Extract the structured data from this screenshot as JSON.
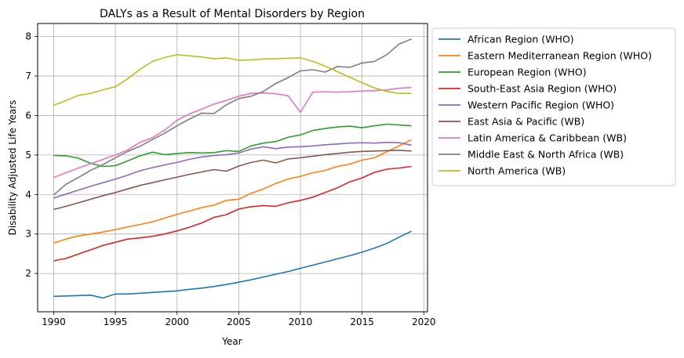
{
  "chart_data": {
    "type": "line",
    "title": "DALYs as a Result of Mental Disorders by Region",
    "xlabel": "Year",
    "ylabel": "Disability Adjusted Life Years",
    "xlim": [
      1988.7,
      2020.3
    ],
    "ylim": [
      1.03,
      8.33
    ],
    "xticks": [
      1990,
      1995,
      2000,
      2005,
      2010,
      2015,
      2020
    ],
    "yticks": [
      2,
      3,
      4,
      5,
      6,
      7,
      8
    ],
    "grid": true,
    "legend_position": "outside-right-top",
    "x": [
      1990,
      1991,
      1992,
      1993,
      1994,
      1995,
      1996,
      1997,
      1998,
      1999,
      2000,
      2001,
      2002,
      2003,
      2004,
      2005,
      2006,
      2007,
      2008,
      2009,
      2010,
      2011,
      2012,
      2013,
      2014,
      2015,
      2016,
      2017,
      2018,
      2019
    ],
    "series": [
      {
        "name": "African Region (WHO)",
        "color": "#1f77b4",
        "values": [
          1.42,
          1.43,
          1.44,
          1.45,
          1.38,
          1.48,
          1.48,
          1.5,
          1.52,
          1.54,
          1.56,
          1.6,
          1.63,
          1.67,
          1.72,
          1.78,
          1.84,
          1.91,
          1.98,
          2.05,
          2.13,
          2.21,
          2.29,
          2.37,
          2.45,
          2.54,
          2.64,
          2.76,
          2.92,
          3.07
        ]
      },
      {
        "name": "Eastern Mediterranean Region (WHO)",
        "color": "#ff7f0e",
        "values": [
          2.77,
          2.87,
          2.95,
          3.0,
          3.05,
          3.11,
          3.18,
          3.24,
          3.31,
          3.4,
          3.5,
          3.58,
          3.67,
          3.73,
          3.85,
          3.88,
          4.03,
          4.14,
          4.28,
          4.39,
          4.46,
          4.55,
          4.61,
          4.71,
          4.77,
          4.87,
          4.93,
          5.08,
          5.23,
          5.39
        ]
      },
      {
        "name": "European Region (WHO)",
        "color": "#2ca02c",
        "values": [
          4.99,
          4.98,
          4.92,
          4.79,
          4.71,
          4.73,
          4.85,
          4.98,
          5.07,
          5.01,
          5.04,
          5.06,
          5.05,
          5.06,
          5.11,
          5.09,
          5.23,
          5.3,
          5.34,
          5.45,
          5.51,
          5.62,
          5.67,
          5.71,
          5.73,
          5.69,
          5.74,
          5.78,
          5.76,
          5.74
        ]
      },
      {
        "name": "South-East Asia Region (WHO)",
        "color": "#d62728",
        "values": [
          2.32,
          2.38,
          2.49,
          2.6,
          2.71,
          2.79,
          2.87,
          2.9,
          2.94,
          3.0,
          3.08,
          3.17,
          3.28,
          3.42,
          3.49,
          3.63,
          3.69,
          3.72,
          3.7,
          3.79,
          3.85,
          3.93,
          4.05,
          4.17,
          4.32,
          4.42,
          4.56,
          4.64,
          4.67,
          4.71
        ]
      },
      {
        "name": "Western Pacific Region (WHO)",
        "color": "#9467bd",
        "values": [
          3.91,
          4.01,
          4.11,
          4.21,
          4.3,
          4.39,
          4.49,
          4.6,
          4.68,
          4.75,
          4.81,
          4.89,
          4.95,
          4.99,
          5.01,
          5.05,
          5.15,
          5.21,
          5.16,
          5.2,
          5.21,
          5.23,
          5.26,
          5.28,
          5.3,
          5.31,
          5.3,
          5.32,
          5.31,
          5.25
        ]
      },
      {
        "name": "East Asia & Pacific (WB)",
        "color": "#8c564b",
        "values": [
          3.62,
          3.7,
          3.79,
          3.88,
          3.97,
          4.05,
          4.14,
          4.23,
          4.3,
          4.37,
          4.44,
          4.51,
          4.57,
          4.63,
          4.59,
          4.72,
          4.81,
          4.87,
          4.8,
          4.9,
          4.93,
          4.97,
          5.01,
          5.04,
          5.07,
          5.09,
          5.1,
          5.11,
          5.12,
          5.1
        ]
      },
      {
        "name": "Latin America & Caribbean (WB)",
        "color": "#e377c2",
        "values": [
          4.43,
          4.55,
          4.67,
          4.78,
          4.89,
          5.0,
          5.13,
          5.32,
          5.44,
          5.63,
          5.88,
          6.04,
          6.16,
          6.29,
          6.38,
          6.49,
          6.56,
          6.57,
          6.55,
          6.5,
          6.08,
          6.59,
          6.6,
          6.59,
          6.6,
          6.62,
          6.63,
          6.65,
          6.69,
          6.71
        ]
      },
      {
        "name": "Middle East & North Africa (WB)",
        "color": "#7f7f7f",
        "values": [
          3.99,
          4.26,
          4.43,
          4.61,
          4.76,
          4.93,
          5.09,
          5.22,
          5.39,
          5.55,
          5.74,
          5.91,
          6.06,
          6.05,
          6.27,
          6.43,
          6.49,
          6.61,
          6.81,
          6.96,
          7.13,
          7.16,
          7.1,
          7.24,
          7.22,
          7.33,
          7.37,
          7.54,
          7.81,
          7.94
        ]
      },
      {
        "name": "North America (WB)",
        "color": "#bcbd22",
        "values": [
          6.26,
          6.38,
          6.51,
          6.56,
          6.65,
          6.73,
          6.93,
          7.17,
          7.37,
          7.47,
          7.54,
          7.51,
          7.48,
          7.44,
          7.46,
          7.4,
          7.41,
          7.43,
          7.44,
          7.45,
          7.46,
          7.37,
          7.25,
          7.11,
          6.97,
          6.83,
          6.7,
          6.61,
          6.56,
          6.56
        ]
      }
    ]
  }
}
